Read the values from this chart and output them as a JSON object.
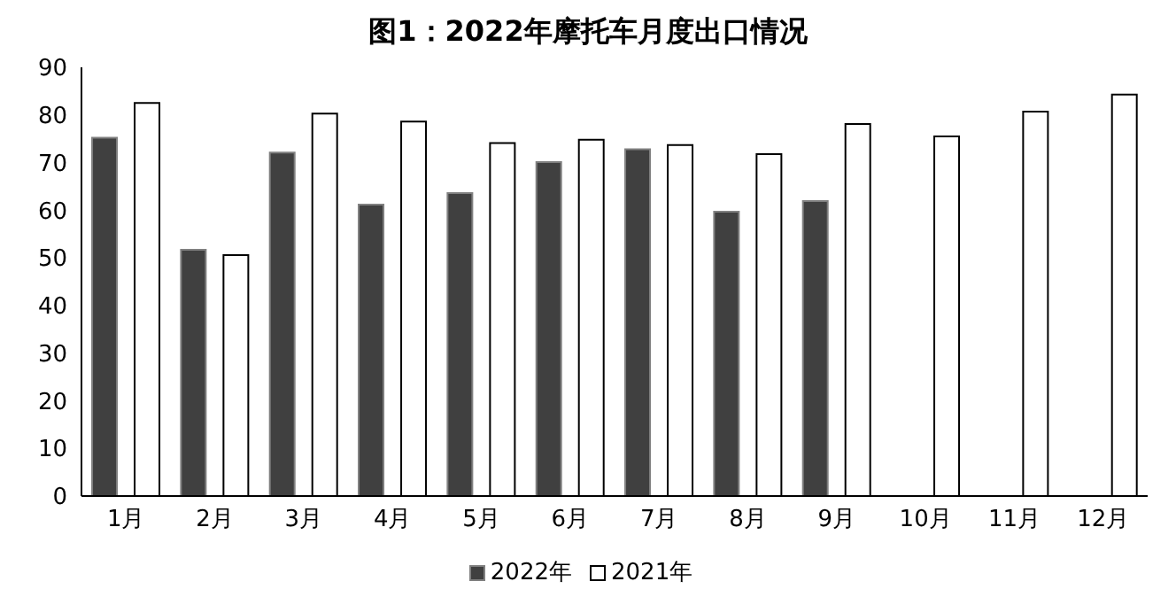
{
  "chart_data": {
    "type": "bar",
    "title": "图1：2022年摩托车月度出口情况",
    "categories": [
      "1月",
      "2月",
      "3月",
      "4月",
      "5月",
      "6月",
      "7月",
      "8月",
      "9月",
      "10月",
      "11月",
      "12月"
    ],
    "series": [
      {
        "name": "2022年",
        "color": "#404040",
        "values": [
          75.2,
          51.7,
          72.1,
          61.2,
          63.6,
          70.1,
          72.8,
          59.7,
          61.9,
          null,
          null,
          null
        ]
      },
      {
        "name": "2021年",
        "color": "#ffffff",
        "values": [
          82.5,
          50.6,
          80.3,
          78.6,
          74.1,
          74.8,
          73.7,
          71.8,
          78.1,
          75.5,
          80.7,
          84.3
        ]
      }
    ],
    "ylim": [
      0,
      90
    ],
    "yticks": [
      0,
      10,
      20,
      30,
      40,
      50,
      60,
      70,
      80,
      90
    ],
    "grid": false,
    "legend": "bottom"
  }
}
